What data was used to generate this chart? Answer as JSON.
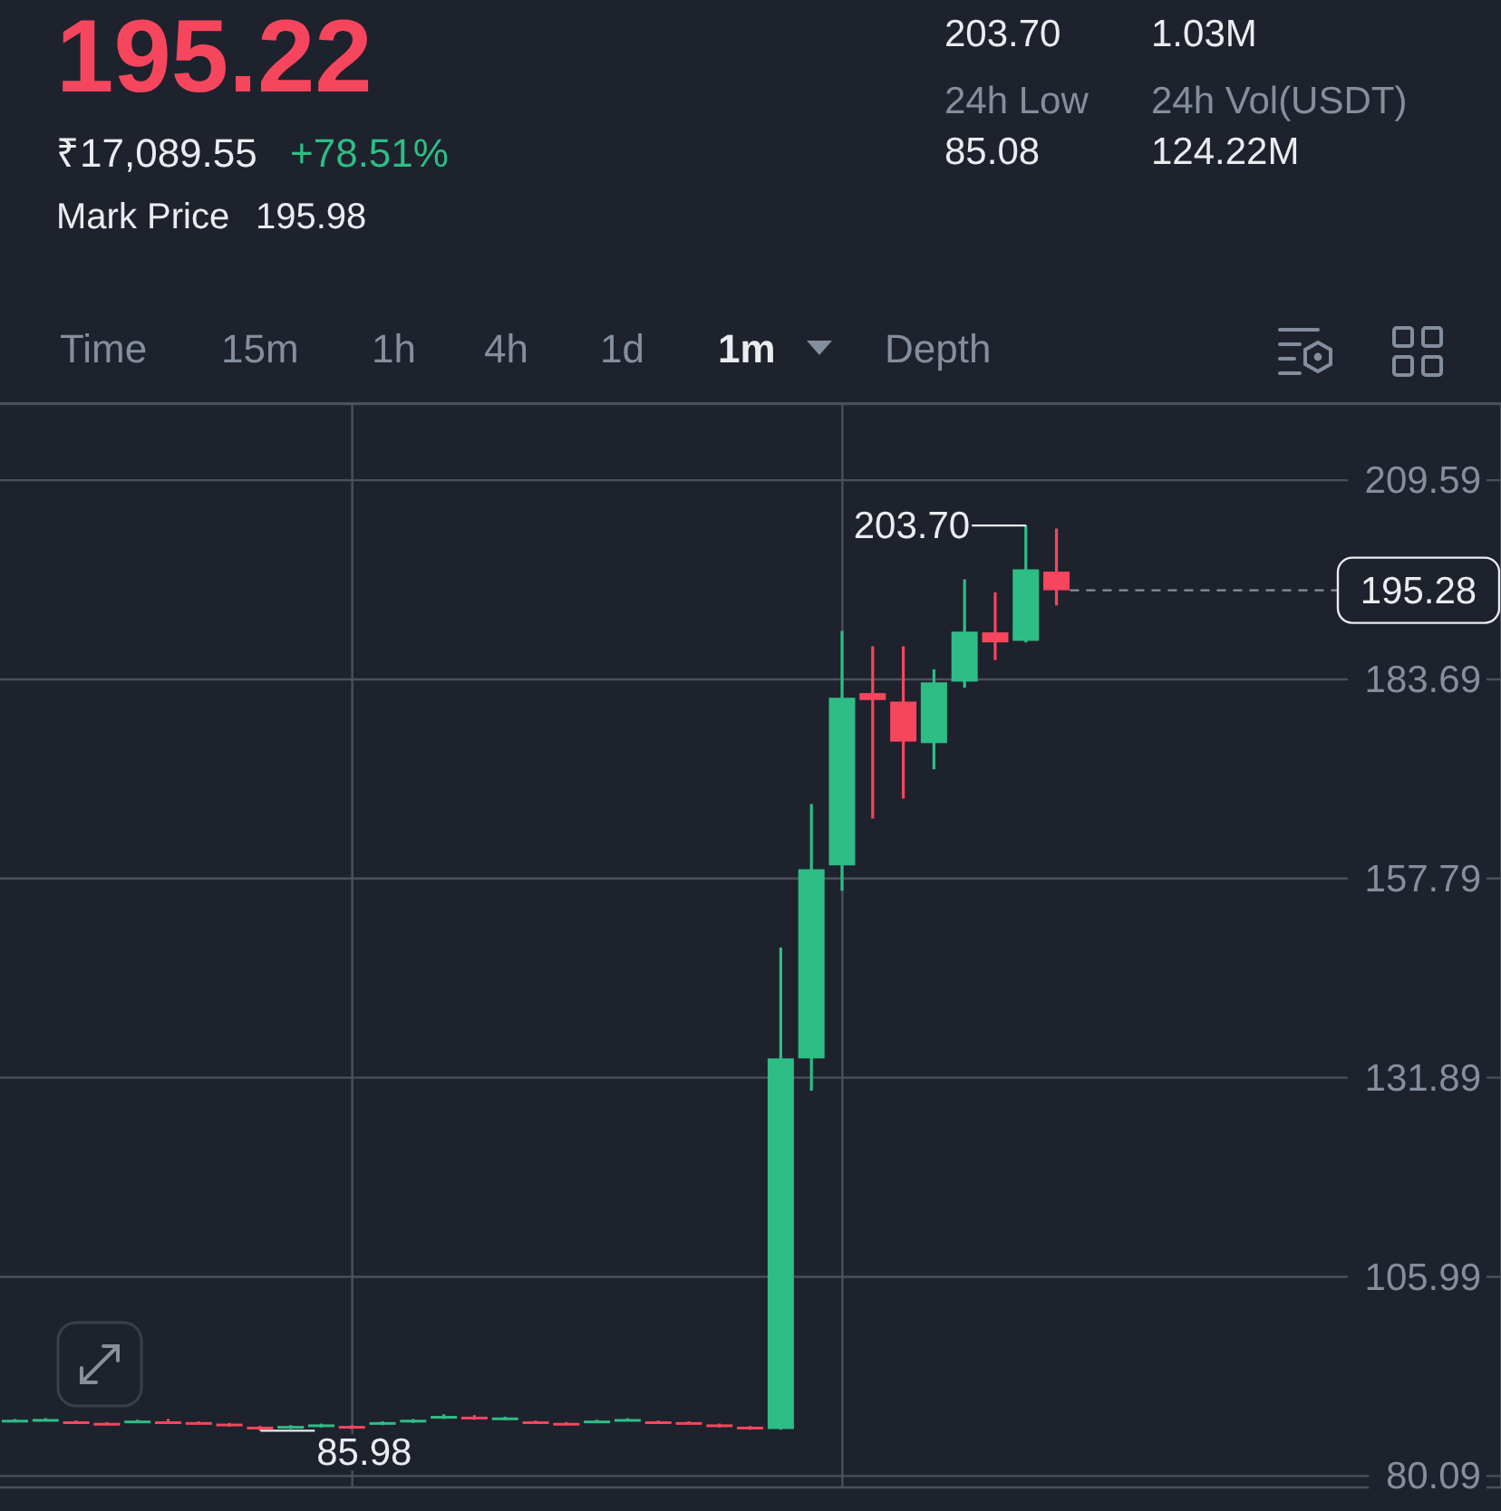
{
  "chart_data": {
    "type": "candlestick",
    "title": "195.22",
    "annotations": [
      "₹17,089.55",
      "+78.51%",
      "Mark Price",
      "195.98",
      "203.70",
      "1.03M",
      "24h Low",
      "85.08",
      "24h Vol(USDT)",
      "124.22M",
      "Time",
      "15m",
      "1h",
      "4h",
      "1d",
      "1m",
      "Depth",
      "203.70",
      "85.98"
    ],
    "categories": [
      null,
      null,
      null,
      null,
      null,
      null,
      null,
      null,
      null,
      null,
      null,
      null,
      null,
      null,
      null,
      null,
      null,
      null,
      null,
      null,
      null,
      null,
      null,
      null,
      null,
      null,
      null,
      null,
      null,
      null,
      null,
      null,
      null,
      null,
      null,
      null,
      null,
      null,
      null,
      null,
      null,
      null,
      null,
      null,
      null,
      null,
      null,
      null,
      null
    ],
    "ohlc": [
      [
        87.2,
        87.5,
        87.1,
        87.4
      ],
      [
        87.3,
        87.6,
        87.2,
        87.5
      ],
      [
        87.2,
        87.3,
        86.9,
        87.0
      ],
      [
        87.0,
        87.1,
        86.7,
        86.8
      ],
      [
        87.1,
        87.4,
        87.0,
        87.3
      ],
      [
        87.2,
        87.5,
        86.9,
        87.0
      ],
      [
        87.1,
        87.2,
        86.8,
        86.9
      ],
      [
        86.9,
        87.0,
        86.5,
        86.6
      ],
      [
        86.5,
        86.6,
        85.98,
        86.2
      ],
      [
        86.3,
        86.7,
        86.2,
        86.6
      ],
      [
        86.5,
        86.9,
        86.4,
        86.8
      ],
      [
        86.6,
        86.7,
        86.2,
        86.3
      ],
      [
        86.8,
        87.2,
        86.7,
        87.1
      ],
      [
        87.1,
        87.5,
        87.0,
        87.4
      ],
      [
        87.6,
        88.1,
        87.5,
        87.9
      ],
      [
        87.8,
        88.0,
        87.4,
        87.5
      ],
      [
        87.5,
        87.8,
        87.4,
        87.7
      ],
      [
        87.2,
        87.3,
        86.9,
        87.0
      ],
      [
        87.0,
        87.1,
        86.7,
        86.8
      ],
      [
        87.1,
        87.4,
        87.0,
        87.3
      ],
      [
        87.3,
        87.6,
        87.2,
        87.5
      ],
      [
        87.2,
        87.3,
        86.9,
        87.0
      ],
      [
        87.1,
        87.2,
        86.8,
        86.9
      ],
      [
        86.8,
        86.9,
        86.4,
        86.5
      ],
      [
        86.5,
        86.6,
        86.1,
        86.2
      ],
      [
        86.2,
        148.8,
        86.1,
        134.4
      ],
      [
        134.4,
        167.5,
        130.2,
        159.0
      ],
      [
        159.5,
        190.0,
        156.2,
        181.3
      ],
      [
        181.9,
        188.0,
        165.6,
        181.0
      ],
      [
        180.8,
        188.0,
        168.2,
        175.6
      ],
      [
        175.4,
        185.0,
        172.0,
        183.3
      ],
      [
        183.4,
        196.7,
        182.6,
        189.9
      ],
      [
        189.8,
        195.0,
        186.2,
        188.5
      ],
      [
        188.7,
        203.7,
        188.5,
        198.0
      ],
      [
        197.7,
        203.3,
        193.3,
        195.28
      ],
      null,
      null,
      null,
      null,
      null,
      null,
      null,
      null,
      null,
      null,
      null,
      null,
      null,
      null
    ],
    "colors": [
      "#2ebd85",
      "#2ebd85",
      "#f6465d",
      "#f6465d",
      "#2ebd85",
      "#f6465d",
      "#f6465d",
      "#f6465d",
      "#f6465d",
      "#2ebd85",
      "#2ebd85",
      "#f6465d",
      "#2ebd85",
      "#2ebd85",
      "#2ebd85",
      "#f6465d",
      "#2ebd85",
      "#f6465d",
      "#f6465d",
      "#2ebd85",
      "#2ebd85",
      "#f6465d",
      "#f6465d",
      "#f6465d",
      "#f6465d",
      "#2ebd85",
      "#2ebd85",
      "#2ebd85",
      "#f6465d",
      "#f6465d",
      "#2ebd85",
      "#2ebd85",
      "#f6465d",
      "#2ebd85",
      "#f6465d",
      null,
      null,
      null,
      null,
      null,
      null,
      null,
      null,
      null,
      null,
      null,
      null,
      null,
      null
    ],
    "ylim": [
      78.6,
      219.5
    ],
    "yticks": [
      209.59,
      183.69,
      157.79,
      131.89,
      105.99,
      80.09
    ],
    "ref_lines": [
      {
        "axis": "y",
        "value": 195.28,
        "label": "195.28",
        "line_style": "dashed"
      }
    ],
    "grid": true,
    "tick_labels": "y"
  }
}
